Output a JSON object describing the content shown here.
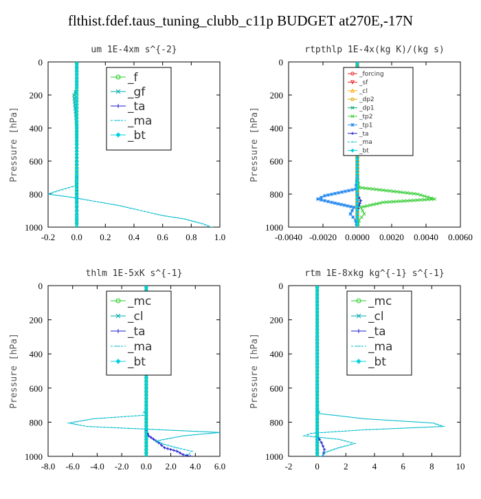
{
  "figure_title": "flthist.fdef.taus_tuning_clubb_c11p  BUDGET at270E,-17N",
  "chart_data": [
    {
      "type": "line",
      "title": "um   1E-4xm s^{-2}",
      "ylabel": "Pressure [hPa]",
      "xlabel": "",
      "xlim": [
        -0.2,
        1.0
      ],
      "ylim": [
        1000,
        0
      ],
      "xticks": [
        "-0.2",
        "0.0",
        "0.2",
        "0.4",
        "0.6",
        "0.8",
        "1.0"
      ],
      "yticks": [
        "0",
        "200",
        "400",
        "600",
        "800",
        "1000"
      ],
      "legend_position": "top-right",
      "series": [
        {
          "name": "_f",
          "color": "#22cc22",
          "marker": "o",
          "x": [
            0,
            0,
            0,
            0,
            0,
            0,
            0,
            0,
            0,
            0,
            0,
            0,
            0
          ],
          "y": [
            10,
            100,
            200,
            300,
            400,
            500,
            600,
            700,
            800,
            850,
            900,
            950,
            1000
          ]
        },
        {
          "name": "_gf",
          "color": "#00aaaa",
          "marker": "x",
          "x": [
            0,
            0,
            -0.01,
            -0.02,
            0,
            0,
            0
          ],
          "y": [
            10,
            150,
            180,
            200,
            400,
            700,
            1000
          ]
        },
        {
          "name": "_ta",
          "color": "#1a1acc",
          "marker": "+",
          "x": [
            0,
            0,
            0,
            0
          ],
          "y": [
            10,
            500,
            900,
            1000
          ]
        },
        {
          "name": "_ma",
          "color": "#00bbcc",
          "marker": "-",
          "x": [
            0,
            -0.01,
            -0.13,
            -0.2,
            -0.03,
            0.1,
            0.3,
            0.45,
            0.6,
            0.75,
            0.88,
            0.94
          ],
          "y": [
            700,
            750,
            780,
            800,
            820,
            840,
            870,
            900,
            930,
            950,
            980,
            1000
          ]
        },
        {
          "name": "_bt",
          "color": "#00d0e0",
          "marker": "d",
          "x": [
            0,
            0,
            0
          ],
          "y": [
            10,
            500,
            1000
          ]
        }
      ]
    },
    {
      "type": "line",
      "title": "rtpthlp   1E-4x(kg K)/(kg s)",
      "ylabel": "Pressure [hPa]",
      "xlabel": "",
      "xlim": [
        -0.004,
        0.006
      ],
      "ylim": [
        1000,
        0
      ],
      "xticks": [
        "-0.0040",
        "-0.0020",
        "0.0000",
        "0.0020",
        "0.0040",
        "0.0060"
      ],
      "yticks": [
        "0",
        "200",
        "400",
        "600",
        "800",
        "1000"
      ],
      "legend_position": "top-right",
      "series": [
        {
          "name": "_forcing",
          "color": "#ee2222",
          "marker": "o",
          "x": [
            0,
            0,
            0
          ],
          "y": [
            10,
            500,
            1000
          ]
        },
        {
          "name": "_sf",
          "color": "#ee2222",
          "marker": "v",
          "x": [
            0,
            0
          ],
          "y": [
            10,
            1000
          ]
        },
        {
          "name": "_cl",
          "color": "#ffaa00",
          "marker": "^",
          "x": [
            0,
            0
          ],
          "y": [
            10,
            1000
          ]
        },
        {
          "name": "_dp2",
          "color": "#ddaa00",
          "marker": "o",
          "x": [
            0,
            0
          ],
          "y": [
            10,
            1000
          ]
        },
        {
          "name": "_dp1",
          "color": "#00aa66",
          "marker": "x",
          "x": [
            0,
            0,
            0,
            0
          ],
          "y": [
            10,
            700,
            950,
            1000
          ]
        },
        {
          "name": "_tp2",
          "color": "#33cc33",
          "marker": "x",
          "x": [
            0,
            0.0001,
            0.0035,
            0.0045,
            0.0015,
            0.0002,
            0.0004,
            0.0001,
            0
          ],
          "y": [
            700,
            760,
            800,
            830,
            850,
            880,
            920,
            960,
            1000
          ]
        },
        {
          "name": "_tp1",
          "color": "#2288ee",
          "marker": "*",
          "x": [
            0,
            -0.0001,
            -0.0019,
            -0.0023,
            -0.0015,
            -0.0002,
            -0.0004,
            -0.0001,
            0
          ],
          "y": [
            700,
            770,
            810,
            830,
            850,
            880,
            920,
            960,
            1000
          ]
        },
        {
          "name": "_ta",
          "color": "#1a1acc",
          "marker": "+",
          "x": [
            0,
            0.0001,
            0.0002,
            0.0001,
            0
          ],
          "y": [
            800,
            820,
            840,
            870,
            900
          ]
        },
        {
          "name": "_ma",
          "color": "#00bbcc",
          "marker": "-",
          "x": [
            0,
            0
          ],
          "y": [
            10,
            1000
          ]
        },
        {
          "name": "_bt",
          "color": "#00d0e0",
          "marker": "d",
          "x": [
            0,
            0
          ],
          "y": [
            10,
            1000
          ]
        }
      ]
    },
    {
      "type": "line",
      "title": "thlm   1E-5xK s^{-1}",
      "ylabel": "Pressure [hPa]",
      "xlabel": "",
      "xlim": [
        -8.0,
        6.0
      ],
      "ylim": [
        1000,
        0
      ],
      "xticks": [
        "-8.0",
        "-6.0",
        "-4.0",
        "-2.0",
        "0.0",
        "2.0",
        "4.0",
        "6.0"
      ],
      "yticks": [
        "0",
        "200",
        "400",
        "600",
        "800",
        "1000"
      ],
      "legend_position": "top-right",
      "series": [
        {
          "name": "_mc",
          "color": "#22cc22",
          "marker": "o",
          "x": [
            0,
            0,
            0,
            0
          ],
          "y": [
            10,
            400,
            800,
            1000
          ]
        },
        {
          "name": "_cl",
          "color": "#00aaaa",
          "marker": "x",
          "x": [
            0,
            0
          ],
          "y": [
            10,
            1000
          ]
        },
        {
          "name": "_ta",
          "color": "#1a1acc",
          "marker": "+",
          "x": [
            0,
            0.2,
            0.6,
            1.0,
            1.5,
            2.5,
            3.0,
            3.6
          ],
          "y": [
            850,
            880,
            900,
            920,
            950,
            970,
            990,
            1000
          ]
        },
        {
          "name": "_ma",
          "color": "#00bbcc",
          "marker": "-",
          "x": [
            0,
            -0.3,
            -4.3,
            -6.3,
            -4.8,
            6.0,
            3.0,
            0.8,
            1.5,
            2.5,
            3.7,
            3.4
          ],
          "y": [
            720,
            760,
            780,
            805,
            825,
            860,
            880,
            910,
            930,
            950,
            970,
            990
          ]
        },
        {
          "name": "_bt",
          "color": "#00d0e0",
          "marker": "d",
          "x": [
            0,
            0
          ],
          "y": [
            10,
            1000
          ]
        }
      ]
    },
    {
      "type": "line",
      "title": "rtm   1E-8xkg kg^{-1} s^{-1}",
      "ylabel": "Pressure [hPa]",
      "xlabel": "",
      "xlim": [
        -2,
        10
      ],
      "ylim": [
        1000,
        0
      ],
      "xticks": [
        "-2",
        "0",
        "2",
        "4",
        "6",
        "8",
        "10"
      ],
      "yticks": [
        "0",
        "200",
        "400",
        "600",
        "800",
        "1000"
      ],
      "legend_position": "top-right",
      "series": [
        {
          "name": "_mc",
          "color": "#22cc22",
          "marker": "o",
          "x": [
            0,
            0,
            0,
            0
          ],
          "y": [
            10,
            400,
            800,
            1000
          ]
        },
        {
          "name": "_cl",
          "color": "#00aaaa",
          "marker": "x",
          "x": [
            0,
            0
          ],
          "y": [
            10,
            1000
          ]
        },
        {
          "name": "_ta",
          "color": "#1a1acc",
          "marker": "+",
          "x": [
            0,
            0.3,
            0.5,
            0.4
          ],
          "y": [
            880,
            920,
            960,
            1000
          ]
        },
        {
          "name": "_ma",
          "color": "#00bbcc",
          "marker": "-",
          "x": [
            0,
            0.2,
            3.3,
            8.1,
            8.8,
            3.2,
            -0.4,
            -0.9,
            1.5,
            2.6,
            1.5,
            0.6,
            0.3
          ],
          "y": [
            720,
            750,
            780,
            805,
            825,
            845,
            865,
            880,
            900,
            925,
            950,
            975,
            1000
          ]
        },
        {
          "name": "_bt",
          "color": "#00d0e0",
          "marker": "d",
          "x": [
            0,
            0
          ],
          "y": [
            10,
            1000
          ]
        }
      ]
    }
  ]
}
